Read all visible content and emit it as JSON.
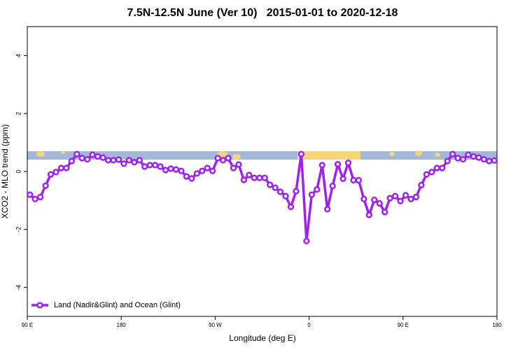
{
  "chart_data": {
    "type": "line",
    "title": "7.5N-12.5N June (Ver 10)   2015-01-01 to 2020-12-18",
    "x_label": "Longitude (deg E)",
    "y_label": "XCO2 - MLO trend (ppm)",
    "xlim": [
      90,
      540
    ],
    "xticks": [
      {
        "value": 90,
        "label": "90 E"
      },
      180,
      {
        "value": 270,
        "label": "90 W"
      },
      {
        "value": 360,
        "label": "0"
      },
      {
        "value": 450,
        "label": "90 E"
      },
      {
        "value": 540,
        "label": "180"
      }
    ],
    "ylim": [
      -5,
      5
    ],
    "yticks": [
      -4,
      -2,
      0,
      2,
      4
    ],
    "legend": "bottom-left",
    "x": [
      92.5,
      97.5,
      102.5,
      107.5,
      112.5,
      117.5,
      122.5,
      127.5,
      132.5,
      137.5,
      142.5,
      147.5,
      152.5,
      157.5,
      162.5,
      167.5,
      172.5,
      177.5,
      182.5,
      187.5,
      192.5,
      197.5,
      202.5,
      207.5,
      212.5,
      217.5,
      222.5,
      227.5,
      232.5,
      237.5,
      242.5,
      247.5,
      252.5,
      257.5,
      262.5,
      267.5,
      272.5,
      277.5,
      282.5,
      287.5,
      292.5,
      297.5,
      302.5,
      307.5,
      312.5,
      317.5,
      322.5,
      327.5,
      332.5,
      337.5,
      342.5,
      347.5,
      352.5,
      357.5,
      362.5,
      367.5,
      372.5,
      377.5,
      382.5,
      387.5,
      392.5,
      397.5,
      402.5,
      407.5,
      412.5,
      417.5,
      422.5,
      427.5,
      432.5,
      437.5,
      442.5,
      447.5,
      452.5,
      457.5,
      462.5,
      467.5,
      472.5,
      477.5,
      482.5,
      487.5,
      492.5,
      497.5,
      502.5,
      507.5,
      512.5,
      517.5,
      522.5,
      527.5,
      532.5,
      537.5
    ],
    "series": [
      {
        "name": "Land (Nadir&Glint) and Ocean (Glint)",
        "color": "#a020f0",
        "values": [
          -0.8,
          -0.95,
          -0.88,
          -0.49,
          -0.1,
          -0.02,
          0.12,
          0.12,
          0.36,
          0.6,
          0.46,
          0.42,
          0.58,
          0.52,
          0.48,
          0.39,
          0.39,
          0.41,
          0.27,
          0.39,
          0.32,
          0.39,
          0.17,
          0.22,
          0.22,
          0.17,
          0.05,
          0.1,
          0.07,
          0.02,
          -0.17,
          -0.24,
          -0.07,
          0.02,
          0.12,
          0.02,
          0.46,
          0.39,
          0.46,
          0.12,
          0.24,
          -0.29,
          -0.12,
          -0.22,
          -0.22,
          -0.22,
          -0.46,
          -0.56,
          -0.7,
          -0.85,
          -1.22,
          -0.68,
          0.6,
          -2.4,
          -0.8,
          -0.62,
          0.22,
          -1.3,
          -0.5,
          0.25,
          -0.25,
          0.3,
          -0.3,
          -0.3,
          -0.95,
          -1.5,
          -0.98,
          -1.1,
          -1.4,
          -0.92,
          -0.85,
          -1.02,
          -0.82,
          -0.95,
          -0.88,
          -0.47,
          -0.1,
          -0.02,
          0.12,
          0.12,
          0.36,
          0.6,
          0.46,
          0.42,
          0.58,
          0.52,
          0.48,
          0.42,
          0.36,
          0.38
        ]
      }
    ]
  }
}
